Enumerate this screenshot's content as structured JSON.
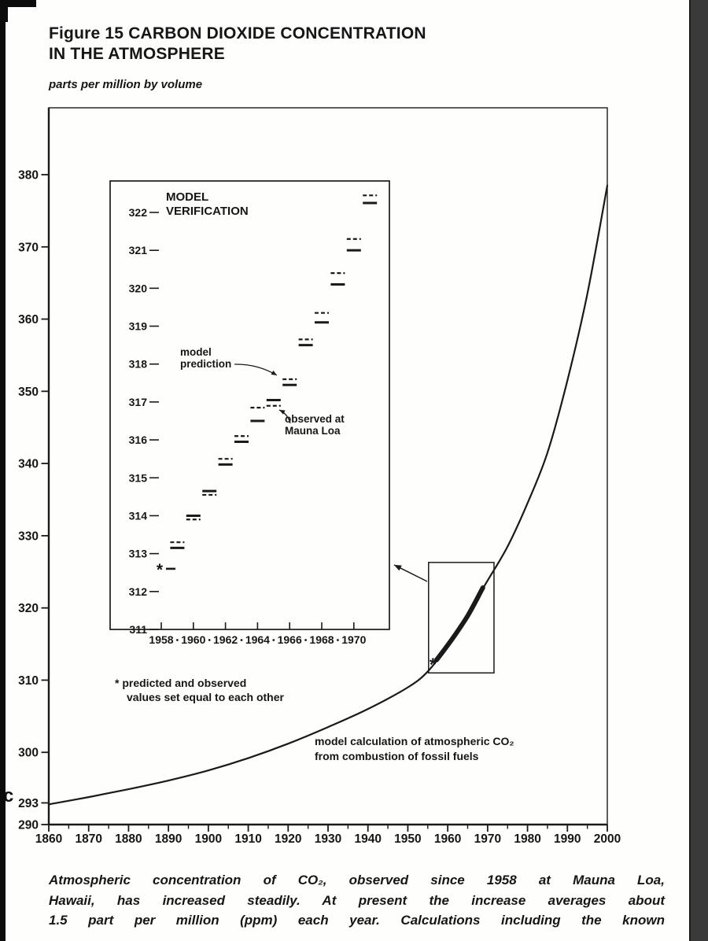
{
  "page": {
    "title_line1": "Figure 15 CARBON DIOXIDE CONCENTRATION",
    "title_line2": "IN THE ATMOSPHERE",
    "units_label": "parts per million by volume",
    "caption_lines": [
      "Atmospheric concentration of CO₂, observed since 1958 at Mauna Loa,",
      "Hawaii, has increased steadily. At present the increase averages about",
      "1.5 part per million (ppm) each year. Calculations including the known"
    ],
    "scan_artifact": "c"
  },
  "chart_data": [
    {
      "id": "main-curve-chart",
      "type": "line",
      "title": "Figure 15 CARBON DIOXIDE CONCENTRATION IN THE ATMOSPHERE",
      "xlabel": "",
      "ylabel": "parts per million by volume",
      "xlim": [
        1860,
        2000
      ],
      "ylim": [
        290,
        389
      ],
      "grid": false,
      "x_ticks": [
        1860,
        1870,
        1880,
        1890,
        1900,
        1910,
        1920,
        1930,
        1940,
        1950,
        1960,
        1970,
        1980,
        1990,
        2000
      ],
      "y_ticks": [
        380,
        370,
        360,
        350,
        340,
        330,
        320,
        310,
        300,
        293,
        290
      ],
      "series": [
        {
          "name": "model calculation of atmospheric CO₂ from combustion of fossil fuels",
          "style": "solid-thin",
          "x": [
            1860,
            1870,
            1880,
            1890,
            1900,
            1910,
            1920,
            1930,
            1940,
            1950,
            1955,
            1960,
            1965,
            1970,
            1975,
            1980,
            1985,
            1990,
            1995,
            2000
          ],
          "y": [
            292.8,
            293.8,
            294.9,
            296.1,
            297.5,
            299.2,
            301.2,
            303.5,
            306.0,
            309.0,
            311.2,
            314.8,
            319.2,
            323.8,
            328.5,
            334.5,
            341.5,
            351.5,
            363.5,
            378.5
          ]
        },
        {
          "name": "observed at Mauna Loa (heavy segment, 1958-1971)",
          "style": "solid-thick",
          "x": [
            1957.2,
            1959,
            1961,
            1963,
            1965,
            1967,
            1968.8
          ],
          "y": [
            312.8,
            314.1,
            315.6,
            317.2,
            318.9,
            320.9,
            322.8
          ]
        }
      ],
      "point_markers": [
        {
          "type": "asterisk",
          "x": 1956.3,
          "y": 312.2
        }
      ],
      "zoom_box": {
        "x0": 1955.2,
        "x1": 1971.6,
        "y0": 311,
        "y1": 326.3
      },
      "annotation": {
        "line1": "model calculation of atmospheric CO₂",
        "line2": "from combustion of fossil fuels"
      }
    },
    {
      "id": "inset-model-verification",
      "type": "step-comparison",
      "title_line1": "MODEL",
      "title_line2": "VERIFICATION",
      "xlim": [
        1955,
        1972.2
      ],
      "ylim": [
        311,
        322.8
      ],
      "x_ticks": [
        1958,
        1960,
        1962,
        1964,
        1966,
        1968,
        1970
      ],
      "y_ticks": [
        322,
        321,
        320,
        319,
        318,
        317,
        316,
        315,
        314,
        313,
        312,
        311
      ],
      "years": [
        1958,
        1959,
        1960,
        1961,
        1962,
        1963,
        1964,
        1965,
        1966,
        1967,
        1968,
        1969,
        1970,
        1971
      ],
      "series": [
        {
          "name": "observed at Mauna Loa",
          "style": "solid",
          "values": [
            312.6,
            313.15,
            314.0,
            314.65,
            315.35,
            315.95,
            316.5,
            317.05,
            317.45,
            318.5,
            319.1,
            320.1,
            321.0,
            322.25
          ]
        },
        {
          "name": "model prediction",
          "style": "dashed",
          "values": [
            312.6,
            313.3,
            313.9,
            314.55,
            315.5,
            316.1,
            316.85,
            316.9,
            317.6,
            318.65,
            319.35,
            320.4,
            321.3,
            322.45
          ]
        }
      ],
      "asterisk": {
        "year": 1958,
        "value": 312.6
      },
      "labels": {
        "model_prediction_line1": "model",
        "model_prediction_line2": "prediction",
        "observed_line1": "observed at",
        "observed_line2": "Mauna Loa"
      },
      "footnote_line1": "* predicted and observed",
      "footnote_line2": "values set equal to each other"
    }
  ]
}
